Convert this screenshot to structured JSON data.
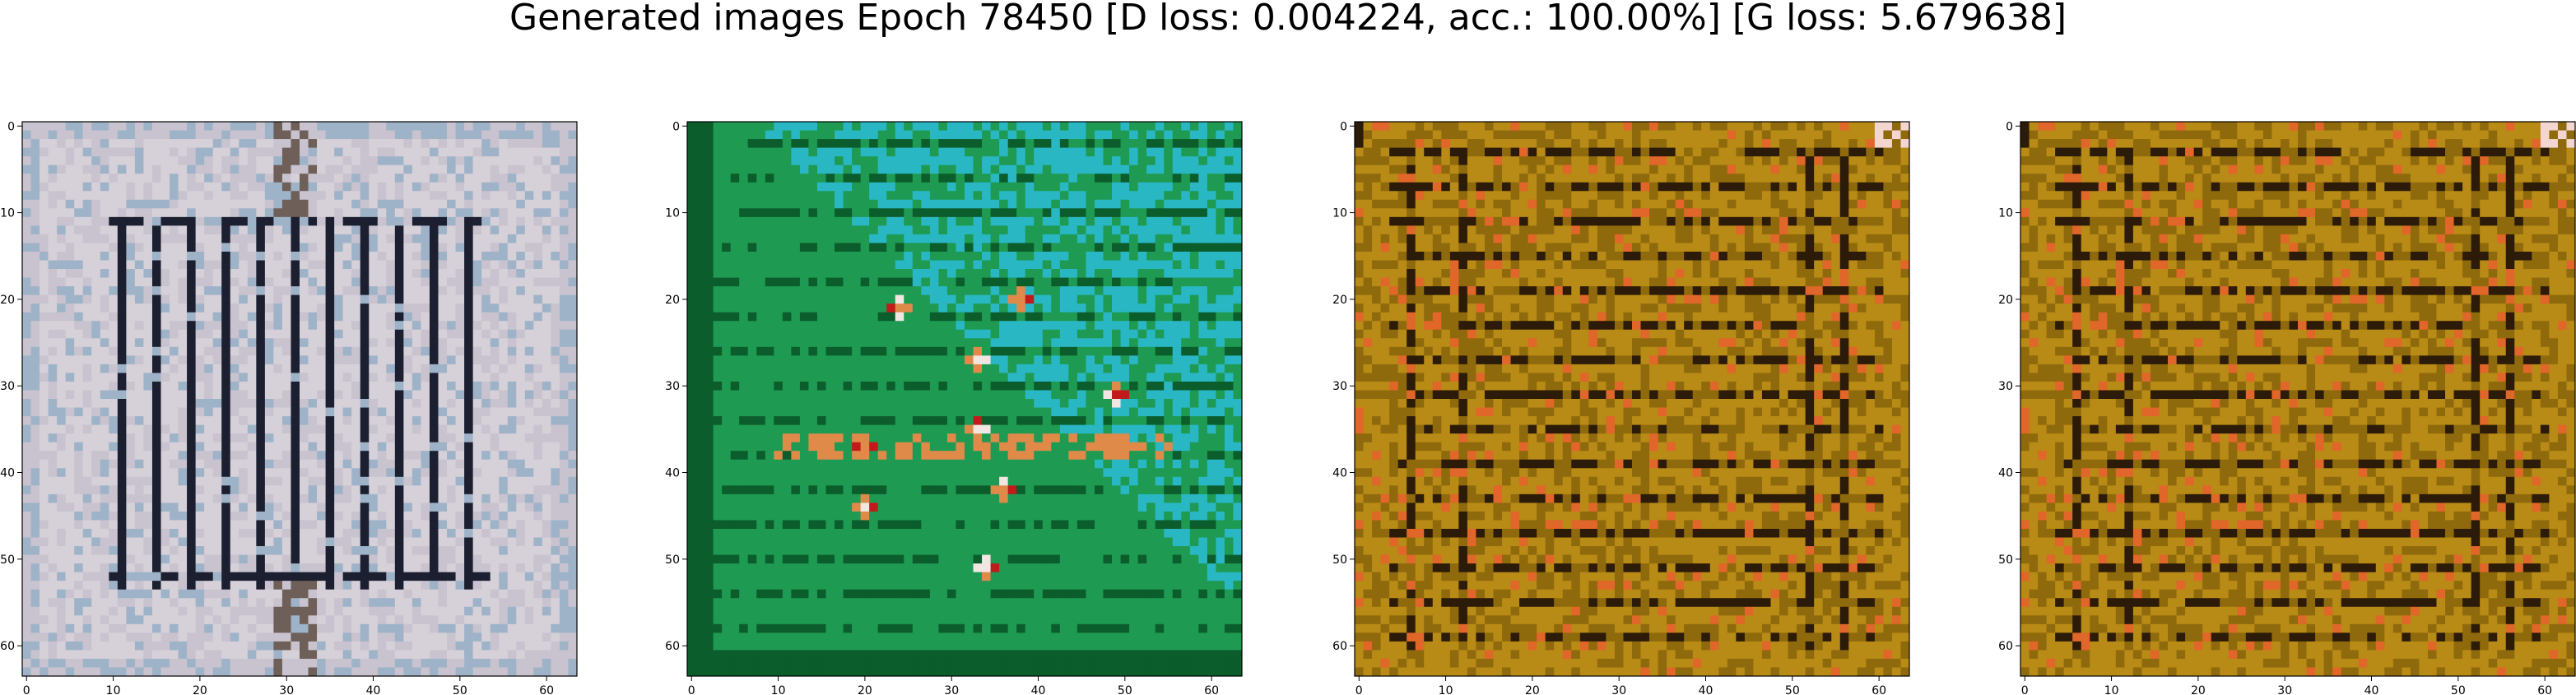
{
  "figure": {
    "title": "Generated images Epoch 78450 [D loss: 0.004224, acc.: 100.00%] [G loss: 5.679638]"
  },
  "chart_data": [
    {
      "type": "heatmap",
      "content": "generated 64x64 RGB image: pale grey-lavender field with a grid of dark vertical bars inside a rectangular frame",
      "palette": [
        "#d6d0d8",
        "#c9c3cf",
        "#1c1f30",
        "#9fb3c8",
        "#6e5f58"
      ],
      "xlim": [
        0,
        63
      ],
      "ylim": [
        63,
        0
      ],
      "xticks": [
        0,
        10,
        20,
        30,
        40,
        50,
        60
      ],
      "yticks": [
        0,
        10,
        20,
        30,
        40,
        50,
        60
      ]
    },
    {
      "type": "heatmap",
      "content": "generated 64x64 RGB image: green field with cyan upper-right, scattered orange and white blobs and dark horizontal stripes",
      "palette": [
        "#1e9a52",
        "#2ab7c4",
        "#0b5d2c",
        "#e08a4a",
        "#f2e6e2",
        "#c21a1a"
      ],
      "xlim": [
        0,
        63
      ],
      "ylim": [
        63,
        0
      ],
      "xticks": [
        0,
        10,
        20,
        30,
        40,
        50,
        60
      ],
      "yticks": [
        0,
        10,
        20,
        30,
        40,
        50,
        60
      ]
    },
    {
      "type": "heatmap",
      "content": "generated 64x64 RGB image: olive-ochre field with dark horizontal and vertical stripes and orange accents forming a framed pattern",
      "palette": [
        "#b88a16",
        "#8f6a0c",
        "#2b1b08",
        "#e0662a",
        "#f4d6d0"
      ],
      "xlim": [
        0,
        63
      ],
      "ylim": [
        63,
        0
      ],
      "xticks": [
        0,
        10,
        20,
        30,
        40,
        50,
        60
      ],
      "yticks": [
        0,
        10,
        20,
        30,
        40,
        50,
        60
      ]
    },
    {
      "type": "heatmap",
      "content": "generated 64x64 RGB image: olive-ochre field with dark horizontal and vertical stripes and orange accents forming a framed pattern (near duplicate of the third image)",
      "palette": [
        "#b88a16",
        "#8f6a0c",
        "#2b1b08",
        "#e0662a",
        "#f4d6d0"
      ],
      "xlim": [
        0,
        63
      ],
      "ylim": [
        63,
        0
      ],
      "xticks": [
        0,
        10,
        20,
        30,
        40,
        50,
        60
      ],
      "yticks": [
        0,
        10,
        20,
        30,
        40,
        50,
        60
      ]
    }
  ]
}
